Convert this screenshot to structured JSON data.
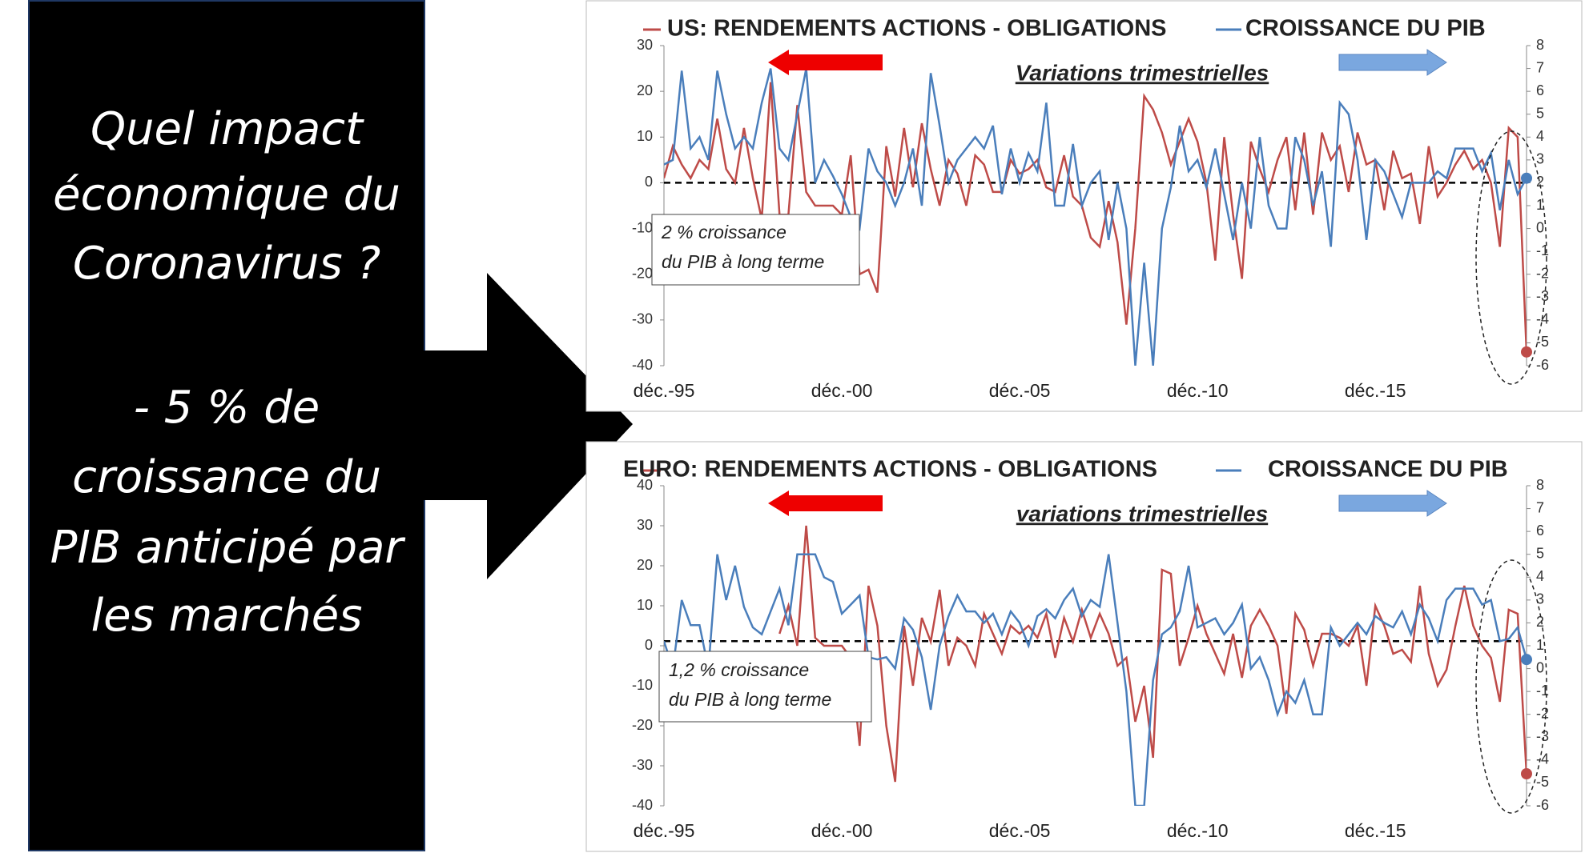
{
  "panel": {
    "lines": [
      "Quel impact",
      "économique du",
      "Coronavirus ?",
      "- 5 % de",
      "croissance du",
      "PIB anticipé par",
      "les marchés"
    ]
  },
  "chart_data": [
    {
      "type": "line",
      "subtitle": "Variations trimestrielles",
      "annotation": [
        "2 % croissance",
        "du PIB à long terme"
      ],
      "categories": [
        "déc.-95",
        null,
        null,
        null,
        null,
        null,
        null,
        null,
        null,
        null,
        null,
        null,
        null,
        null,
        null,
        null,
        null,
        null,
        null,
        null,
        "déc.-00",
        null,
        null,
        null,
        null,
        null,
        null,
        null,
        null,
        null,
        null,
        null,
        null,
        null,
        null,
        null,
        null,
        null,
        null,
        null,
        "déc.-05",
        null,
        null,
        null,
        null,
        null,
        null,
        null,
        null,
        null,
        null,
        null,
        null,
        null,
        null,
        null,
        null,
        null,
        null,
        null,
        "déc.-10",
        null,
        null,
        null,
        null,
        null,
        null,
        null,
        null,
        null,
        null,
        null,
        null,
        null,
        null,
        null,
        null,
        null,
        null,
        null,
        "déc.-15",
        null,
        null,
        null,
        null,
        null,
        null,
        null,
        null,
        null,
        null,
        null,
        null,
        null,
        null,
        null,
        null,
        null
      ],
      "series": [
        {
          "name": "US: RENDEMENTS ACTIONS - OBLIGATIONS",
          "color": "#be4b48",
          "axis": "y",
          "values": [
            1,
            8,
            4,
            1,
            5,
            3,
            14,
            3,
            0,
            12,
            1,
            -8,
            22,
            -7,
            -7,
            17,
            -2,
            -5,
            -5,
            -5,
            -7,
            6,
            -20,
            -19,
            -24,
            8,
            -3,
            12,
            -1,
            13,
            3,
            -5,
            5,
            2,
            -5,
            6,
            4,
            -2,
            -2,
            5,
            2,
            3,
            5,
            -1,
            -2,
            6,
            -3,
            -5,
            -12,
            -14,
            -4,
            -13,
            -31,
            -10,
            19,
            16,
            11,
            4,
            9,
            14,
            9,
            0,
            -17,
            10,
            -7,
            -21,
            9,
            3,
            -2,
            5,
            10,
            -6,
            11,
            -7,
            11,
            5,
            8,
            -2,
            11,
            4,
            5,
            -6,
            7,
            1,
            2,
            -9,
            8,
            -3,
            0,
            4,
            7,
            3,
            5,
            0,
            -14,
            12,
            10,
            -37
          ]
        },
        {
          "name": "CROISSANCE DU PIB",
          "color": "#4a7ebb",
          "axis": "y2",
          "values": [
            2.8,
            3,
            6.9,
            3.5,
            4,
            3,
            6.9,
            5,
            3.5,
            4,
            3.5,
            5.5,
            7,
            3.5,
            3,
            5,
            7,
            2,
            3,
            2.3,
            1.5,
            0.5,
            0,
            3.5,
            2.5,
            2,
            1,
            2,
            3.5,
            1,
            6.8,
            4.5,
            2,
            3,
            3.5,
            4,
            3.5,
            4.5,
            1.5,
            3.5,
            2,
            3.3,
            2.5,
            5.5,
            1,
            1,
            3.7,
            1,
            2,
            2.5,
            -0.5,
            2,
            0,
            -6,
            -1.5,
            -6,
            0,
            1.8,
            4.5,
            2.5,
            3,
            1.8,
            3.5,
            1.5,
            -0.5,
            2,
            0,
            4,
            1,
            0,
            0,
            4,
            3,
            1,
            2.5,
            -0.8,
            5.5,
            5,
            3,
            -0.5,
            3,
            2.5,
            1.5,
            0.5,
            2,
            2,
            2,
            2.5,
            2.2,
            3.5,
            3.5,
            3.5,
            2.5,
            3.3,
            0.8,
            3,
            1.5,
            2.2
          ]
        }
      ],
      "ylim": [
        -40,
        30
      ],
      "yticks": [
        -40,
        -30,
        -20,
        -10,
        0,
        10,
        20,
        30
      ],
      "y2lim": [
        -6,
        8
      ],
      "y2ticks": [
        -6,
        -5,
        -4,
        -3,
        -2,
        -1,
        0,
        1,
        2,
        3,
        4,
        5,
        6,
        7,
        8
      ],
      "reference_line": {
        "value": 2,
        "axis": "y2"
      },
      "mark_last": true
    },
    {
      "type": "line",
      "subtitle": "variations trimestrielles",
      "annotation": [
        "1,2 % croissance",
        " du PIB à long terme"
      ],
      "categories": [
        "déc.-95",
        null,
        null,
        null,
        null,
        null,
        null,
        null,
        null,
        null,
        null,
        null,
        null,
        null,
        null,
        null,
        null,
        null,
        null,
        null,
        "déc.-00",
        null,
        null,
        null,
        null,
        null,
        null,
        null,
        null,
        null,
        null,
        null,
        null,
        null,
        null,
        null,
        null,
        null,
        null,
        null,
        "déc.-05",
        null,
        null,
        null,
        null,
        null,
        null,
        null,
        null,
        null,
        null,
        null,
        null,
        null,
        null,
        null,
        null,
        null,
        null,
        null,
        "déc.-10",
        null,
        null,
        null,
        null,
        null,
        null,
        null,
        null,
        null,
        null,
        null,
        null,
        null,
        null,
        null,
        null,
        null,
        null,
        null,
        "déc.-15",
        null,
        null,
        null,
        null,
        null,
        null,
        null,
        null,
        null,
        null,
        null,
        null,
        null,
        null,
        null,
        null,
        null
      ],
      "series": [
        {
          "name": "EURO: RENDEMENTS ACTIONS - OBLIGATIONS",
          "color": "#be4b48",
          "axis": "y",
          "values": [
            null,
            null,
            null,
            null,
            null,
            null,
            null,
            null,
            null,
            null,
            null,
            null,
            null,
            3,
            10,
            0,
            30,
            2,
            0,
            0,
            0,
            -3,
            -25,
            15,
            5,
            -20,
            -34,
            5,
            -10,
            7,
            1,
            14,
            -5,
            2,
            0,
            -5,
            8,
            3,
            -2,
            5,
            3,
            5,
            2,
            8,
            -3,
            7,
            1,
            9,
            2,
            8,
            3,
            -5,
            -3,
            -19,
            -10,
            -28,
            19,
            18,
            -5,
            2,
            10,
            3,
            -2,
            -7,
            3,
            -8,
            5,
            9,
            5,
            0,
            -17,
            8,
            4,
            -5,
            3,
            3,
            2,
            0,
            5,
            -10,
            10,
            5,
            -2,
            -1,
            -4,
            15,
            -2,
            -10,
            -6,
            5,
            15,
            5,
            0,
            -3,
            -14,
            9,
            8,
            -32
          ]
        },
        {
          "name": "CROISSANCE DU PIB",
          "color": "#4a7ebb",
          "axis": "y2",
          "values": [
            1.2,
            0,
            3,
            1.9,
            1.9,
            0,
            5,
            3,
            4.5,
            2.7,
            1.8,
            1.5,
            2.5,
            3.5,
            1.9,
            5,
            5,
            5,
            4,
            3.8,
            2.4,
            2.8,
            3.2,
            0.5,
            0.4,
            0.5,
            0,
            2.2,
            1.7,
            0.5,
            -1.8,
            1,
            2.3,
            3.2,
            2.5,
            2.5,
            2,
            2.4,
            1.5,
            2.5,
            2,
            1,
            2.3,
            2.6,
            2.2,
            3,
            3.5,
            2.3,
            3,
            2.7,
            5,
            2,
            -1,
            -6,
            -6,
            -0.5,
            1.5,
            1.8,
            2.5,
            4.5,
            1.8,
            2,
            2.2,
            1.5,
            2,
            2.8,
            0,
            0.5,
            -0.5,
            -2,
            -1,
            -1.5,
            -0.5,
            -2,
            -2,
            1.8,
            1,
            1.5,
            2,
            1.5,
            2.3,
            2,
            1.8,
            2.5,
            1.5,
            2.8,
            2.2,
            1.2,
            3,
            3.5,
            3.5,
            3.5,
            2.8,
            3,
            1.2,
            1.3,
            1.8,
            0.4
          ]
        }
      ],
      "ylim": [
        -40,
        40
      ],
      "yticks": [
        -40,
        -30,
        -20,
        -10,
        0,
        10,
        20,
        30,
        40
      ],
      "y2lim": [
        -6,
        8
      ],
      "y2ticks": [
        -6,
        -5,
        -4,
        -3,
        -2,
        -1,
        0,
        1,
        2,
        3,
        4,
        5,
        6,
        7,
        8
      ],
      "reference_line": {
        "value": 1.2,
        "axis": "y2"
      },
      "mark_last": true
    }
  ]
}
